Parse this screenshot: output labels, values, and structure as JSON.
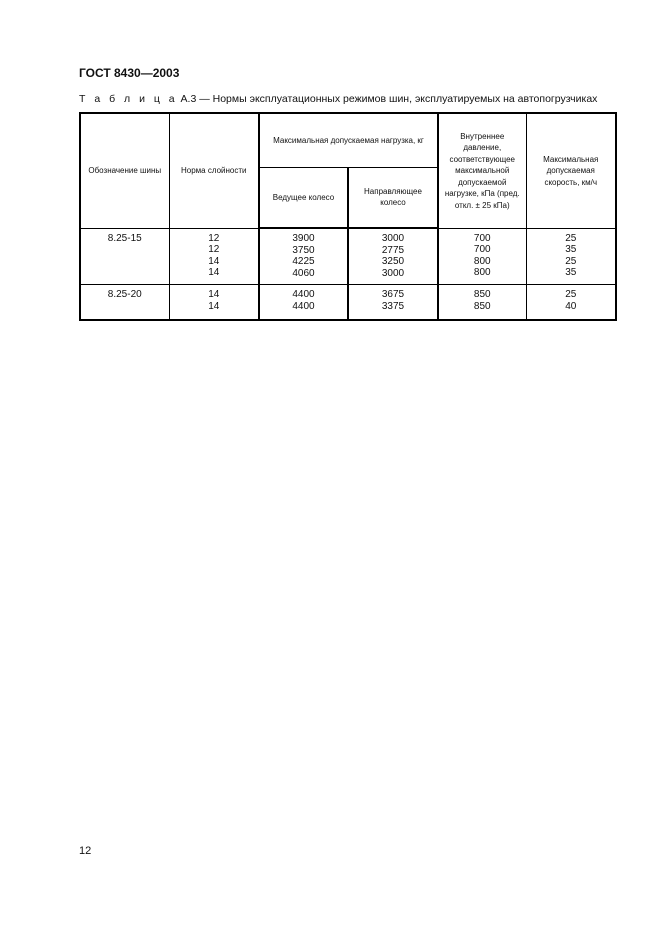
{
  "header": {
    "doc_title": "ГОСТ 8430—2003"
  },
  "caption": {
    "prefix": "Т а б л и ц а",
    "text": " А.3 — Нормы эксплуатационных режимов шин, эксплуатируемых на автопогрузчиках"
  },
  "table": {
    "headers": {
      "designation": "Обозначение шины",
      "ply_rating": "Норма слойности",
      "max_load": "Максимальная допускаемая нагрузка, кг",
      "drive_wheel": "Ведущее колесо",
      "guide_wheel": "Направляющее колесо",
      "pressure": "Внутреннее давление, соответствующее максимальной допускаемой нагрузке, кПа (пред. откл. ± 25 кПа)",
      "speed": "Максимальная допускаемая скорость, км/ч"
    },
    "groups": [
      {
        "designation": "8.25-15",
        "ply": "12\n12\n14\n14",
        "drive": "3900\n3750\n4225\n4060",
        "guide": "3000\n2775\n3250\n3000",
        "pressure": "700\n700\n800\n800",
        "speed": "25\n35\n25\n35"
      },
      {
        "designation": "8.25-20",
        "ply": "14\n14",
        "drive": "4400\n4400",
        "guide": "3675\n3375",
        "pressure": "850\n850",
        "speed": "25\n40"
      }
    ]
  },
  "footer": {
    "page_number": "12"
  }
}
